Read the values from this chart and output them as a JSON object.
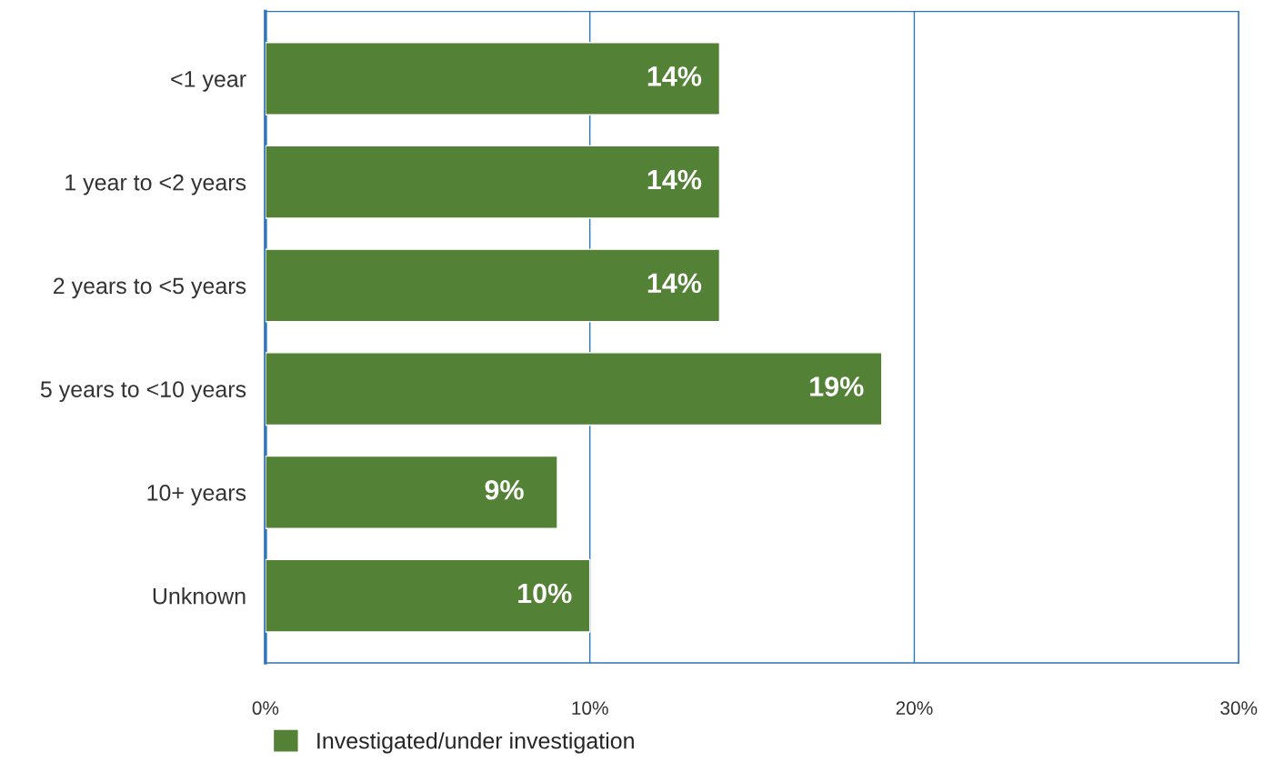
{
  "chart_data": {
    "type": "bar",
    "orientation": "horizontal",
    "categories": [
      "<1 year",
      "1 year to <2 years",
      "2 years to <5 years",
      "5 years to <10 years",
      "10+ years",
      "Unknown"
    ],
    "series": [
      {
        "name": "Investigated/under investigation",
        "color": "#538135",
        "values": [
          14,
          14,
          14,
          19,
          9,
          10
        ],
        "value_labels": [
          "14%",
          "14%",
          "14%",
          "19%",
          "9%",
          "10%"
        ]
      }
    ],
    "xlim": [
      0,
      30
    ],
    "xticks": [
      {
        "value": 0,
        "label": "0%"
      },
      {
        "value": 10,
        "label": "10%"
      },
      {
        "value": 20,
        "label": "20%"
      },
      {
        "value": 30,
        "label": "30%"
      }
    ],
    "grid": "x",
    "legend": "bottom"
  }
}
